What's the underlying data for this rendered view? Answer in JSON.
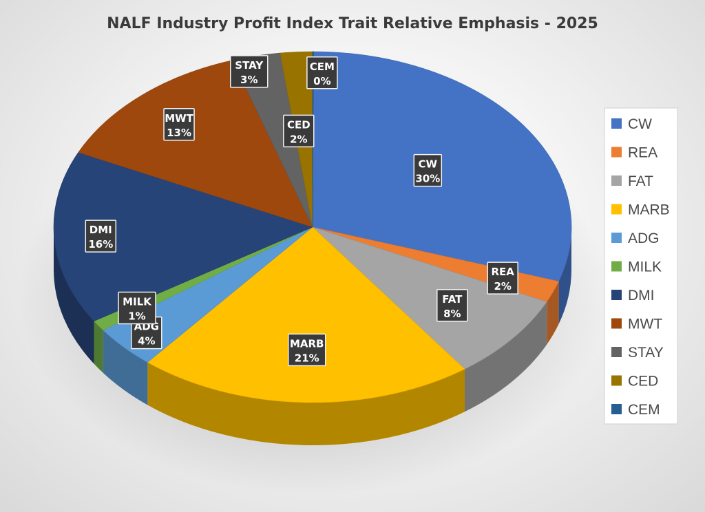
{
  "chart_data": {
    "type": "pie",
    "title": "NALF Industry Profit Index Trait Relative Emphasis - 2025",
    "slices": [
      {
        "label": "CW",
        "value": 30,
        "display": "30%",
        "color": "#4472C4"
      },
      {
        "label": "REA",
        "value": 2,
        "display": "2%",
        "color": "#ED7D31"
      },
      {
        "label": "FAT",
        "value": 8,
        "display": "8%",
        "color": "#A5A5A5"
      },
      {
        "label": "MARB",
        "value": 21,
        "display": "21%",
        "color": "#FFC000"
      },
      {
        "label": "ADG",
        "value": 4,
        "display": "4%",
        "color": "#5B9BD5"
      },
      {
        "label": "MILK",
        "value": 1,
        "display": "1%",
        "color": "#70AD47"
      },
      {
        "label": "DMI",
        "value": 16,
        "display": "16%",
        "color": "#264478"
      },
      {
        "label": "MWT",
        "value": 13,
        "display": "13%",
        "color": "#9E480E"
      },
      {
        "label": "STAY",
        "value": 3,
        "display": "3%",
        "color": "#636363"
      },
      {
        "label": "CED",
        "value": 2,
        "display": "2%",
        "color": "#997300"
      },
      {
        "label": "CEM",
        "value": 0,
        "display": "0%",
        "color": "#255E91"
      }
    ],
    "legend": {
      "position": "right",
      "items": [
        "CW",
        "REA",
        "FAT",
        "MARB",
        "ADG",
        "MILK",
        "DMI",
        "MWT",
        "STAY",
        "CED",
        "CEM"
      ]
    }
  }
}
